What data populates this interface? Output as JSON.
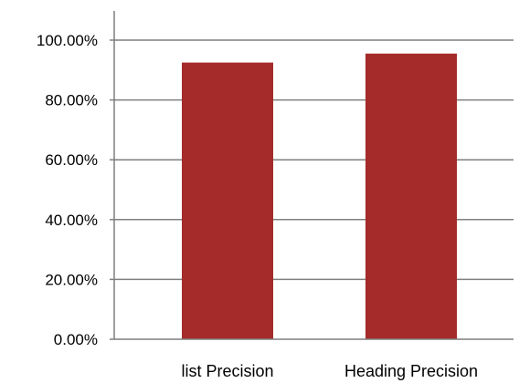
{
  "chart_data": {
    "type": "bar",
    "categories": [
      "list Precision",
      "Heading Precision"
    ],
    "values": [
      92.5,
      95.5
    ],
    "ylim": [
      0,
      100
    ],
    "yticks": [
      0,
      20,
      40,
      60,
      80,
      100
    ],
    "ytick_labels": [
      "0.00%",
      "20.00%",
      "40.00%",
      "60.00%",
      "80.00%",
      "100.00%"
    ],
    "grid": true,
    "legend": "none",
    "bar_color": "#a52a2a",
    "grid_color": "#7f7f7f",
    "axis_color": "#7f7f7f"
  }
}
